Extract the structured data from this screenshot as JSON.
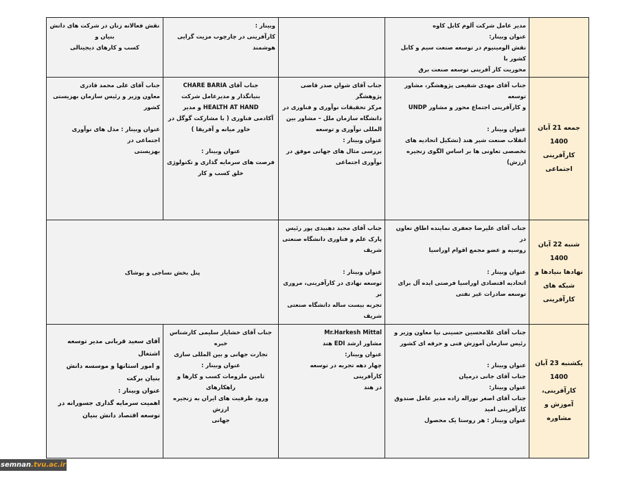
{
  "colors": {
    "date_column_bg": "#fdefd3",
    "cell_bg": "#f2f2f2",
    "border": "#222222",
    "watermark_bg": "#4a4a4a",
    "watermark_accent": "#f0a020"
  },
  "rows": [
    {
      "cells": [
        {
          "lines": [],
          "type": "date"
        },
        {
          "lines": [
            "مدیر عامل شرکت آلوم کابل کاوه",
            "عنوان وبینار:",
            "نقش الومینیوم در توسعه صنعت سیم و کابل کشور با",
            "محوریت کار آفرینی توسعه صنعت برق"
          ],
          "align": "right"
        },
        {
          "lines": [],
          "align": "right"
        },
        {
          "lines": [
            "وبینار :",
            "کارآفرینی در چارچوب مزیت گرایی",
            "هوشمند"
          ],
          "align": "right"
        },
        {
          "lines": [
            "نقش فعالانه زنان در شرکت های دانش بنیان و",
            "کسب و کارهای دیجیتالی"
          ],
          "align": "center"
        }
      ]
    },
    {
      "cells": [
        {
          "lines": [
            "جمعه 21 آبان 1400",
            "کارآفرینی اجتماعی"
          ],
          "type": "date"
        },
        {
          "lines": [
            "جناب آقای مهدی شفیعی پژوهشگر، مشاور توسعه",
            "و کارآفرینی اجتماع محور و مشاور UNDP",
            "",
            "عنوان وبینار :",
            "انقلاب صنعت شیر هند (تشکیل اتحادیه های",
            "تخصصی تعاونی ها بر اساس الگوی زنجیره ارزش)"
          ],
          "align": "right"
        },
        {
          "lines": [
            "جناب آقای شوان صدر قاضی پژوهشگر",
            "مرکز تحقیقات نوآوری و فناوری در",
            "دانشگاه سازمان ملل – مشاور بین",
            "المللی نوآوری و توسعه",
            "عنوان وبینار :",
            "بررسی مثال های جهانی موفق در",
            "نوآوری اجتماعی"
          ],
          "align": "right"
        },
        {
          "lines": [
            "جناب آقای CHARE BARIA",
            "بنیانگذار و مدیرعامل شرکت",
            "HEALTH AT HAND و مدیر",
            "آکادمی فناوری ( با مشارکت گوگل در",
            "خاور میانه و آفریقا )",
            "",
            "عنوان وبینار :",
            "فرصت های سرمایه گذاری و تکنولوژی",
            "خلق کسب و کار"
          ],
          "align": "center"
        },
        {
          "lines": [
            "جناب آقای علی محمد قادری",
            "معاون وزیر و رئیس سازمان بهزیستی کشور",
            "",
            "عنوان وبینار : مدل های نوآوری اجتماعی در",
            "بهزیستی"
          ],
          "align": "right"
        }
      ]
    },
    {
      "cells": [
        {
          "lines": [
            "شنبه 22 آبان 1400",
            "نهادها بنیادها و شبکه های",
            "کارآفرینی"
          ],
          "type": "date"
        },
        {
          "lines": [
            "جناب آقای علیرضا جعفری نماینده اطاق تعاون در",
            "روسیه و عضو مجمع اقوام اوراسیا",
            "",
            "عنوان وبینار :",
            "اتحادیه اقتصادی اوراسیا فرصتی ایده آل برای",
            "توسعه صادرات غیر نفتی"
          ],
          "align": "right"
        },
        {
          "lines": [
            "جناب آقای مجید دهبیدی پور رئیس",
            "پارک علم و فناوری دانشگاه صنعتی",
            "شریف",
            "",
            "عنوان وبینار :",
            "توسعه نهادی در کارآفرینی، مروری بر",
            "تجربه بیست ساله دانشگاه صنعتی شریف"
          ],
          "align": "right"
        },
        {
          "lines": [
            "پنل بخش نساجی و پوشاک"
          ],
          "align": "center",
          "span": 2,
          "middle": true
        }
      ]
    },
    {
      "cells": [
        {
          "lines": [
            "یکشنبه 23 آبان 1400",
            "کارآفرینی، آموزش و",
            "مشاوره"
          ],
          "type": "date"
        },
        {
          "lines": [
            "جناب آقای غلامحسین حسینی نیا معاون وزیر و",
            "رئیس سازمان آموزش فنی و حرفه ای کشور",
            "",
            "عنوان وبینار :",
            "جناب آقای جانی درمیان",
            "عنوان وبینار:",
            "جناب آقای اصغر نوراله زاده مدیر عامل صندوق",
            "کارآفرینی امید",
            "عنوان وبینار : هر روستا یک محصول"
          ],
          "align": "right"
        },
        {
          "lines": [
            "Mr.Harkesh Mittal",
            "مشاور ارشد EDI هند",
            "عنوان وبینار:",
            "چهار دهه تجربه در توسعه کارآفرینی",
            "در هند"
          ],
          "align": "right"
        },
        {
          "lines": [
            "جناب آقای خشایار سلیمی کارشناس خبره",
            "تجارت جهانی و بین المللی سازی",
            "عنوان وبینار :",
            "تامین ملزومات کسب و کارها و راهکارهای",
            "ورود ظرفیت های ایران به زنجیره ارزش",
            "جهانی"
          ],
          "align": "center"
        },
        {
          "lines": [
            "آقای سعید قربانی مدیر توسعه اشتغال",
            "و امور استانها و موسسه دانش بنیان برکت",
            "عنوان وبینار :",
            "اهمیت سرمایه گذاری جسورانه در",
            "توسعه اقتصاد دانش بنیان"
          ],
          "align": "right",
          "big": true
        }
      ]
    }
  ],
  "watermark": {
    "part1": "semnan",
    "part2": ".tvu.ac.ir"
  }
}
